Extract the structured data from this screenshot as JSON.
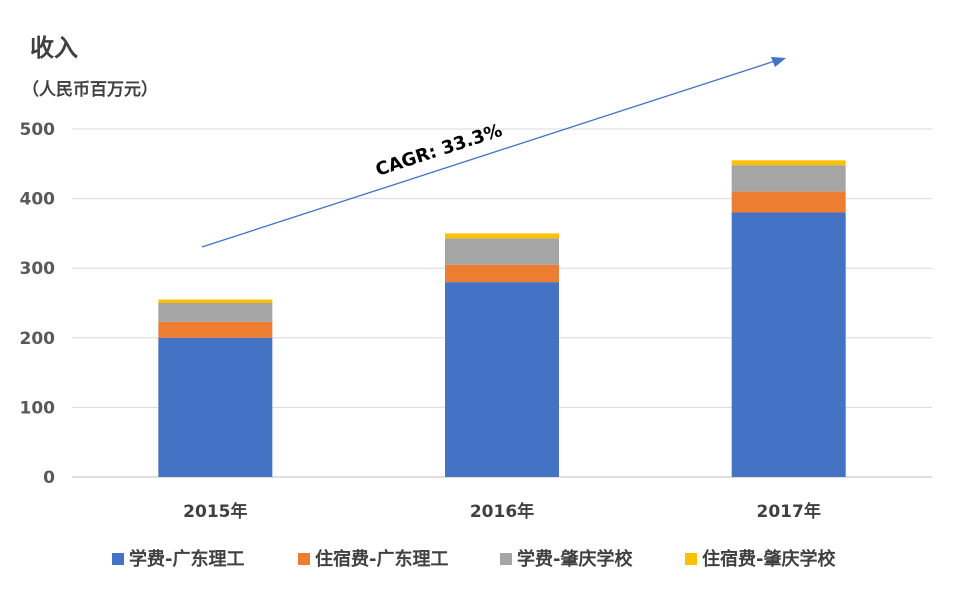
{
  "chart_data": {
    "type": "bar",
    "stacked": true,
    "title": "收入",
    "subtitle": "（人民币百万元）",
    "categories": [
      "2015年",
      "2016年",
      "2017年"
    ],
    "ylim": [
      0,
      500
    ],
    "yticks": [
      "0",
      "100",
      "200",
      "300",
      "400",
      "500"
    ],
    "grid": true,
    "legend_position": "bottom",
    "series": [
      {
        "name": "学费-广东理工",
        "color": "#4472C4",
        "values": [
          200,
          280,
          380
        ]
      },
      {
        "name": "住宿费-广东理工",
        "color": "#ED7D31",
        "values": [
          23,
          25,
          30
        ]
      },
      {
        "name": "学费-肇庆学校",
        "color": "#A5A5A5",
        "values": [
          27,
          38,
          38
        ]
      },
      {
        "name": "住宿费-肇庆学校",
        "color": "#FFC000",
        "values": [
          5,
          7,
          7
        ]
      }
    ],
    "annotation": {
      "text": "CAGR: 33.3%",
      "arrow_color": "#4472C4"
    }
  }
}
